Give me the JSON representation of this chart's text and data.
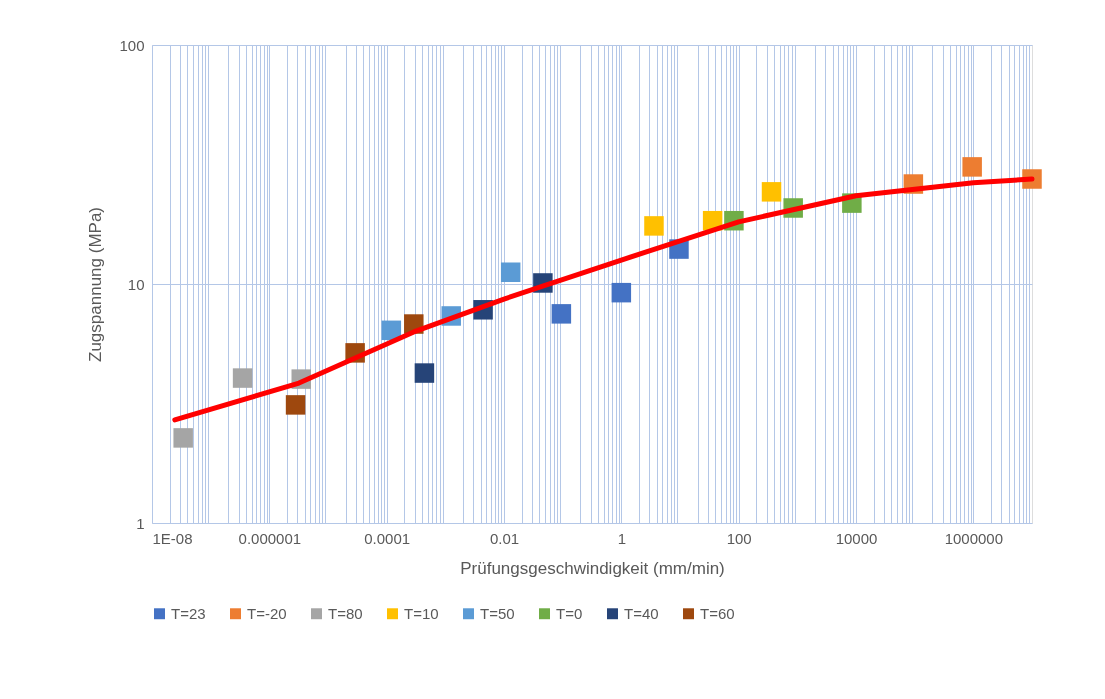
{
  "chart_data": {
    "type": "scatter",
    "xlabel": "Prüfungsgeschwindigkeit (mm/min)",
    "ylabel": "Zugspannung (MPa)",
    "log": "xy",
    "marker": "square",
    "grid": true,
    "legend": "bottom",
    "xlim": [
      1e-08,
      10000000.0
    ],
    "ylim": [
      1,
      100
    ],
    "xticks": [
      {
        "value": 1e-08,
        "label": "1E-08"
      },
      {
        "value": 1e-06,
        "label": "0.000001"
      },
      {
        "value": 0.0001,
        "label": "0.0001"
      },
      {
        "value": 0.01,
        "label": "0.01"
      },
      1,
      100,
      10000,
      1000000
    ],
    "yticks": [
      1,
      10,
      100
    ],
    "series": [
      {
        "name": "T=23",
        "color": "#4472c4",
        "x": [
          0.095,
          1,
          9.6
        ],
        "values": [
          7.5,
          9.2,
          14.0
        ]
      },
      {
        "name": "T=-20",
        "color": "#ed7d31",
        "x": [
          95000,
          955000,
          10000000
        ],
        "values": [
          26.2,
          30.9,
          27.5
        ]
      },
      {
        "name": "T=80",
        "color": "#a5a5a5",
        "x": [
          3.4e-08,
          3.5e-07,
          3.5e-06
        ],
        "values": [
          2.27,
          4.04,
          4.0
        ]
      },
      {
        "name": "T=10",
        "color": "#ffc000",
        "x": [
          3.6,
          36,
          363
        ],
        "values": [
          17.5,
          18.4,
          24.3
        ]
      },
      {
        "name": "T=50",
        "color": "#5b9bd5",
        "x": [
          0.00012,
          0.00126,
          0.013
        ],
        "values": [
          6.4,
          7.35,
          11.2
        ]
      },
      {
        "name": "T=0",
        "color": "#70ad47",
        "x": [
          83,
          850,
          8500
        ],
        "values": [
          18.4,
          20.8,
          21.8
        ]
      },
      {
        "name": "T=40",
        "color": "#264478",
        "x": [
          0.00044,
          0.0044,
          0.046
        ],
        "values": [
          4.24,
          7.8,
          10.1
        ]
      },
      {
        "name": "T=60",
        "color": "#9e480e",
        "x": [
          2.8e-06,
          2.9e-05,
          0.00029
        ],
        "values": [
          3.12,
          5.15,
          6.8
        ]
      },
      {
        "type": "line",
        "marker": "none",
        "color": "#ff0000",
        "x": [
          2.45e-08,
          3.2e-06,
          0.00029,
          0.01,
          1,
          100,
          10000,
          1000000,
          10000000
        ],
        "values": [
          2.7,
          3.85,
          6.3,
          8.65,
          12.6,
          18.2,
          23.4,
          26.5,
          27.5
        ]
      }
    ]
  }
}
